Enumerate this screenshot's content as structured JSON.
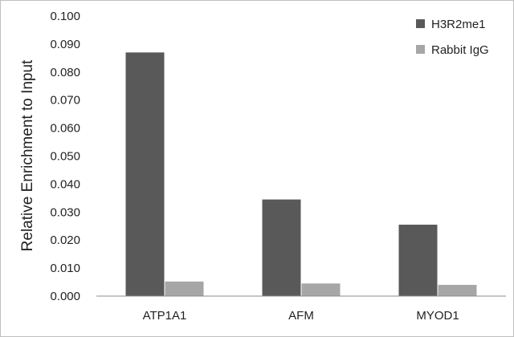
{
  "chart_data": {
    "type": "bar",
    "ylabel": "Relative Enrichment to Input",
    "xlabel": "",
    "ylim": [
      0,
      0.1
    ],
    "yticks": [
      "0.000",
      "0.010",
      "0.020",
      "0.030",
      "0.040",
      "0.050",
      "0.060",
      "0.070",
      "0.080",
      "0.090",
      "0.100"
    ],
    "categories": [
      "ATP1A1",
      "AFM",
      "MYOD1"
    ],
    "series": [
      {
        "name": "H3R2me1",
        "color": "#595959",
        "values": [
          0.087,
          0.0345,
          0.0255
        ]
      },
      {
        "name": "Rabbit IgG",
        "color": "#a6a6a6",
        "values": [
          0.0052,
          0.0045,
          0.004
        ]
      }
    ],
    "grid": false,
    "legend_position": "top-right"
  }
}
